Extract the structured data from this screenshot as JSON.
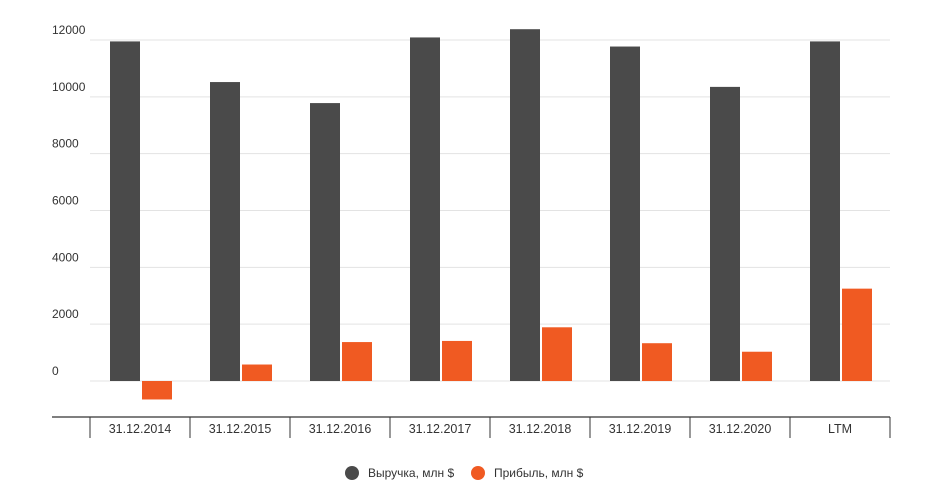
{
  "chart_data": {
    "type": "bar",
    "categories": [
      "31.12.2014",
      "31.12.2015",
      "31.12.2016",
      "31.12.2017",
      "31.12.2018",
      "31.12.2019",
      "31.12.2020",
      "LTM"
    ],
    "series": [
      {
        "name": "Выручка, млн $",
        "color": "#4a4a4a",
        "values": [
          11950,
          10520,
          9780,
          12090,
          12380,
          11770,
          10350,
          11950
        ]
      },
      {
        "name": "Прибыль, млн $",
        "color": "#f05a22",
        "values": [
          -650,
          580,
          1370,
          1410,
          1890,
          1330,
          1030,
          3250
        ]
      }
    ],
    "yticks": [
      "0",
      "2000",
      "4000",
      "6000",
      "8000",
      "10000",
      "12000"
    ],
    "ylim": [
      -1300,
      12400
    ],
    "grid": true,
    "legend_position": "bottom-center"
  }
}
